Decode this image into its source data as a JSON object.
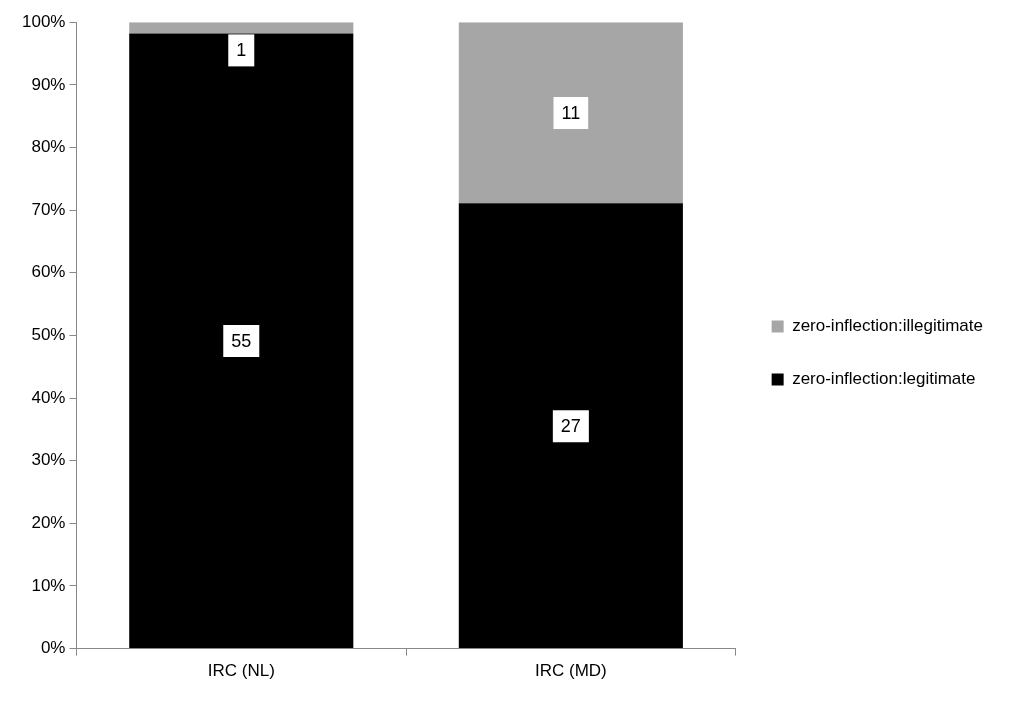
{
  "chart_data": {
    "type": "bar",
    "stacked": true,
    "categories": [
      "IRC (NL)",
      "IRC (MD)"
    ],
    "series": [
      {
        "name": "zero-inflection:legitimate",
        "color": "#000000",
        "values": [
          98.2,
          71.1
        ]
      },
      {
        "name": "zero-inflection:illegitimate",
        "color": "#a6a6a6",
        "values": [
          1.8,
          28.9
        ]
      }
    ],
    "annotations": [
      {
        "text": "55",
        "x": "IRC (NL)",
        "y": 49.1
      },
      {
        "text": "1",
        "x": "IRC (NL)",
        "y": 95.5
      },
      {
        "text": "27",
        "x": "IRC (MD)",
        "y": 35.5
      },
      {
        "text": "11",
        "x": "IRC (MD)",
        "y": 85.5
      }
    ],
    "ylim": [
      0,
      100
    ],
    "yticks": [
      {
        "value": 0,
        "label": "0%"
      },
      {
        "value": 10,
        "label": "10%"
      },
      {
        "value": 20,
        "label": "20%"
      },
      {
        "value": 30,
        "label": "30%"
      },
      {
        "value": 40,
        "label": "40%"
      },
      {
        "value": 50,
        "label": "50%"
      },
      {
        "value": 60,
        "label": "60%"
      },
      {
        "value": 70,
        "label": "70%"
      },
      {
        "value": 80,
        "label": "80%"
      },
      {
        "value": 90,
        "label": "90%"
      },
      {
        "value": 100,
        "label": "100%"
      }
    ],
    "legend": "right"
  }
}
